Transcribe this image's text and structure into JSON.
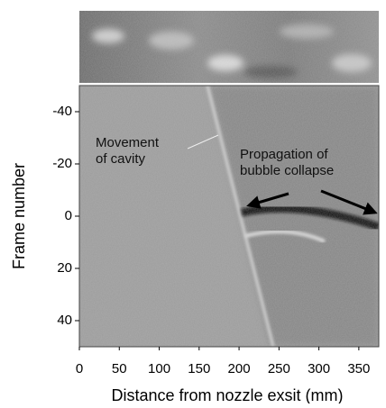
{
  "chart_data": {
    "type": "image",
    "xlabel": "Distance from nozzle exsit (mm)",
    "ylabel": "Frame number",
    "xlim": [
      0,
      375
    ],
    "xticks": [
      0,
      50,
      100,
      150,
      200,
      250,
      300,
      350
    ],
    "ylim": [
      -50,
      50
    ],
    "yticks": [
      -40,
      -20,
      0,
      20,
      40
    ],
    "y_reversed": true,
    "annotations": [
      {
        "lines": [
          "Movement",
          "of cavity"
        ]
      },
      {
        "lines": [
          "Propagation of",
          "bubble collapse"
        ]
      }
    ]
  }
}
